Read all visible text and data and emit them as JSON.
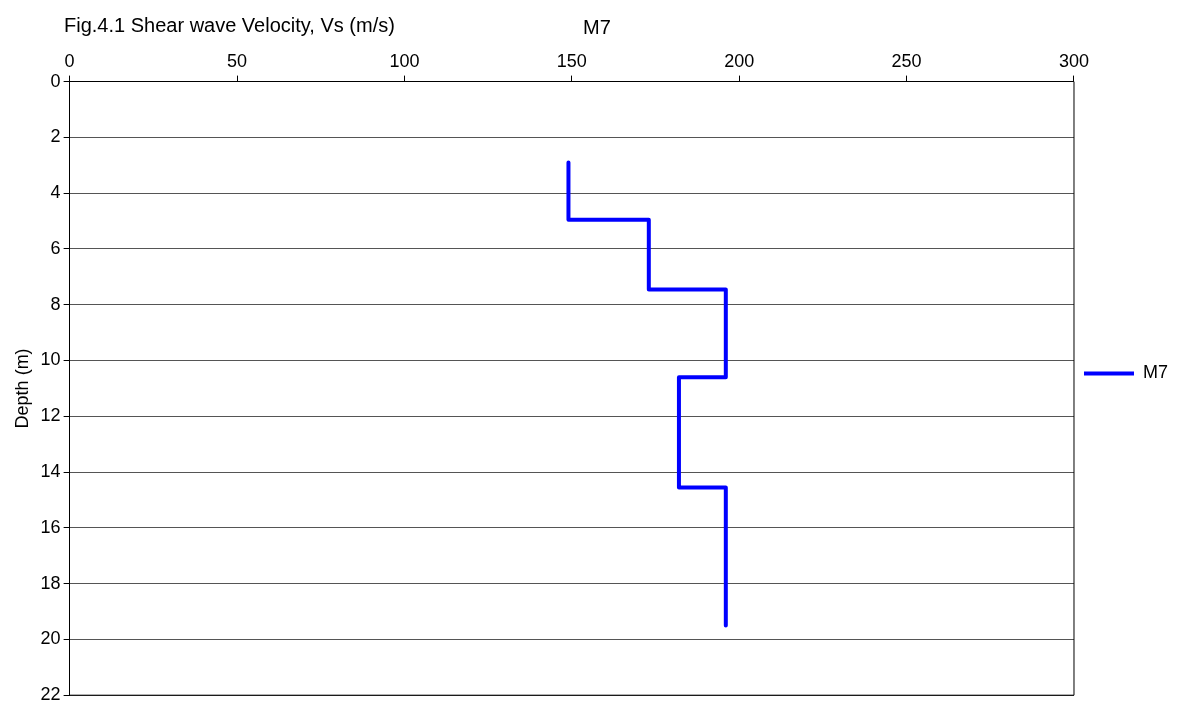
{
  "chart_data": {
    "type": "line",
    "title": "M7",
    "xlabel": "Fig.4.1 Shear wave Velocity, Vs (m/s)",
    "ylabel": "Depth (m)",
    "series": [
      {
        "name": "M7",
        "color": "#0000ff",
        "x": [
          149,
          149,
          173,
          173,
          196,
          196,
          182,
          182,
          196,
          196
        ],
        "values": [
          2.9,
          4.95,
          4.95,
          7.45,
          7.45,
          10.6,
          10.6,
          14.55,
          14.55,
          19.5
        ]
      }
    ],
    "xlim": [
      0,
      300
    ],
    "xticks": [
      0,
      50,
      100,
      150,
      200,
      250,
      300
    ],
    "ylim": [
      22,
      0
    ],
    "yticks": [
      0,
      2,
      4,
      6,
      8,
      10,
      12,
      14,
      16,
      18,
      20,
      22
    ],
    "grid": "y",
    "legend": "right",
    "marker": "none",
    "line_style": "solid"
  }
}
